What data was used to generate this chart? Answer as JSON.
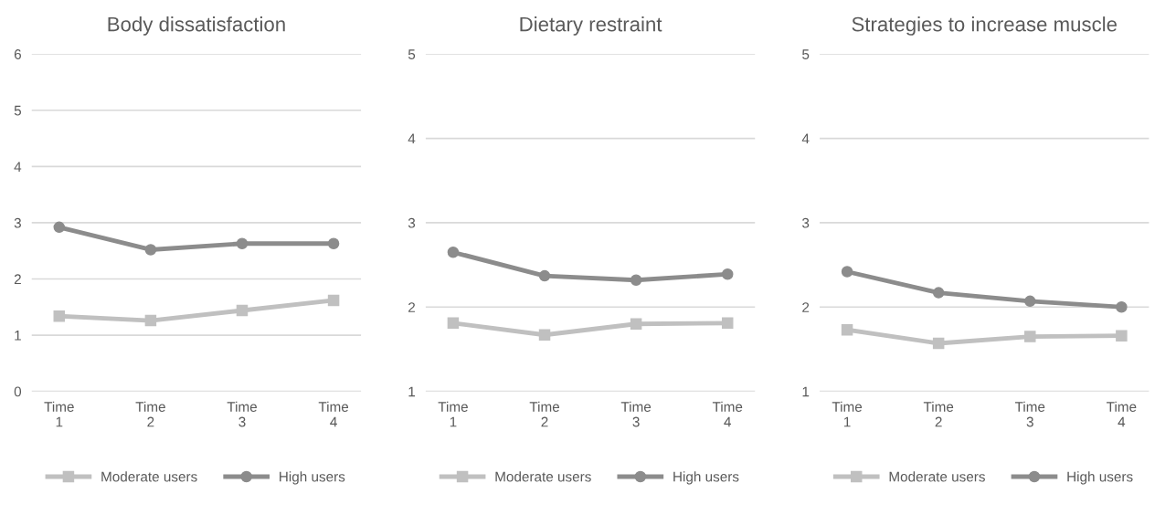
{
  "chart_data": [
    {
      "type": "line",
      "title": "Body dissatisfaction",
      "categories": [
        "Time\n1",
        "Time\n2",
        "Time\n3",
        "Time\n4"
      ],
      "ylim": [
        0,
        6
      ],
      "yticks": [
        0,
        1,
        2,
        3,
        4,
        5,
        6
      ],
      "grid": "y",
      "legend": "bottom",
      "series": [
        {
          "name": "Moderate users",
          "color": "#c0c0c0",
          "marker": "square",
          "values": [
            1.34,
            1.26,
            1.44,
            1.62
          ]
        },
        {
          "name": "High users",
          "color": "#8c8c8c",
          "marker": "circle",
          "values": [
            2.92,
            2.52,
            2.63,
            2.63
          ]
        }
      ]
    },
    {
      "type": "line",
      "title": "Dietary restraint",
      "categories": [
        "Time\n1",
        "Time\n2",
        "Time\n3",
        "Time\n4"
      ],
      "ylim": [
        1,
        5
      ],
      "yticks": [
        1,
        2,
        3,
        4,
        5
      ],
      "grid": "y",
      "legend": "bottom",
      "series": [
        {
          "name": "Moderate users",
          "color": "#c0c0c0",
          "marker": "square",
          "values": [
            1.81,
            1.67,
            1.8,
            1.81
          ]
        },
        {
          "name": "High users",
          "color": "#8c8c8c",
          "marker": "circle",
          "values": [
            2.65,
            2.37,
            2.32,
            2.39
          ]
        }
      ]
    },
    {
      "type": "line",
      "title": "Strategies to increase muscle",
      "categories": [
        "Time\n1",
        "Time\n2",
        "Time\n3",
        "Time\n4"
      ],
      "ylim": [
        1,
        5
      ],
      "yticks": [
        1,
        2,
        3,
        4,
        5
      ],
      "grid": "y",
      "legend": "bottom",
      "series": [
        {
          "name": "Moderate users",
          "color": "#c0c0c0",
          "marker": "square",
          "values": [
            1.73,
            1.57,
            1.65,
            1.66
          ]
        },
        {
          "name": "High users",
          "color": "#8c8c8c",
          "marker": "circle",
          "values": [
            2.42,
            2.17,
            2.07,
            2.0
          ]
        }
      ]
    }
  ]
}
